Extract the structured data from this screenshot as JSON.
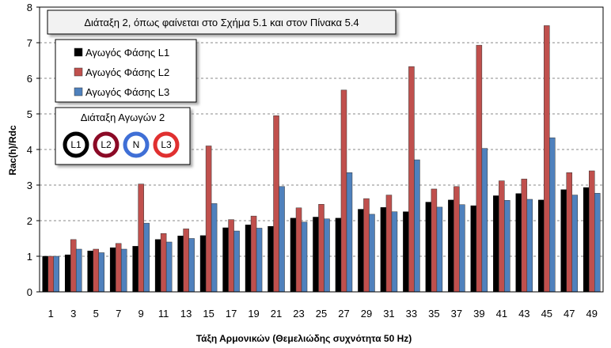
{
  "chart_data": {
    "type": "bar",
    "title": "Διάταξη 2, όπως φαίνεται στο Σχήμα 5.1 και στον Πίνακα 5.4",
    "xlabel": "Τάξη Αρμονικών (Θεμελιώδης συχνότητα 50 Hz)",
    "ylabel": "Rac(h)/Rdc",
    "ylim": [
      0,
      8
    ],
    "yticks": [
      0,
      1,
      2,
      3,
      4,
      5,
      6,
      7,
      8
    ],
    "grid": "horizontal-dashed",
    "legend_position": "top-left",
    "categories": [
      "1",
      "3",
      "5",
      "7",
      "9",
      "11",
      "13",
      "15",
      "17",
      "19",
      "21",
      "23",
      "25",
      "27",
      "29",
      "31",
      "33",
      "35",
      "37",
      "39",
      "41",
      "43",
      "45",
      "47",
      "49"
    ],
    "series": [
      {
        "name": "Αγωγός Φάσης L1",
        "color": "#000000",
        "values": [
          1.0,
          1.04,
          1.15,
          1.24,
          1.28,
          1.47,
          1.57,
          1.58,
          1.8,
          1.88,
          1.84,
          2.07,
          2.1,
          2.07,
          2.32,
          2.37,
          2.25,
          2.52,
          2.58,
          2.42,
          2.7,
          2.76,
          2.58,
          2.87,
          2.93
        ]
      },
      {
        "name": "Αγωγός Φάσης L2",
        "color": "#c0504d",
        "values": [
          1.0,
          1.47,
          1.2,
          1.36,
          3.03,
          1.64,
          1.77,
          4.1,
          2.03,
          2.13,
          4.95,
          2.36,
          2.46,
          5.67,
          2.62,
          2.72,
          6.33,
          2.89,
          2.96,
          6.93,
          3.12,
          3.17,
          7.48,
          3.35,
          3.4
        ]
      },
      {
        "name": "Αγωγός Φάσης L3",
        "color": "#4f81bd",
        "values": [
          1.0,
          1.2,
          1.1,
          1.2,
          1.93,
          1.4,
          1.5,
          2.48,
          1.71,
          1.79,
          2.96,
          1.96,
          2.05,
          3.35,
          2.18,
          2.25,
          3.71,
          2.38,
          2.45,
          4.03,
          2.57,
          2.6,
          4.33,
          2.72,
          2.77
        ]
      }
    ],
    "inset": {
      "title": "Διάταξη Αγωγών 2",
      "conductors": [
        {
          "label": "L1",
          "color": "#000000"
        },
        {
          "label": "L2",
          "color": "#8b0a26"
        },
        {
          "label": "N",
          "color": "#3f6fd6"
        },
        {
          "label": "L3",
          "color": "#e03030"
        }
      ]
    }
  }
}
